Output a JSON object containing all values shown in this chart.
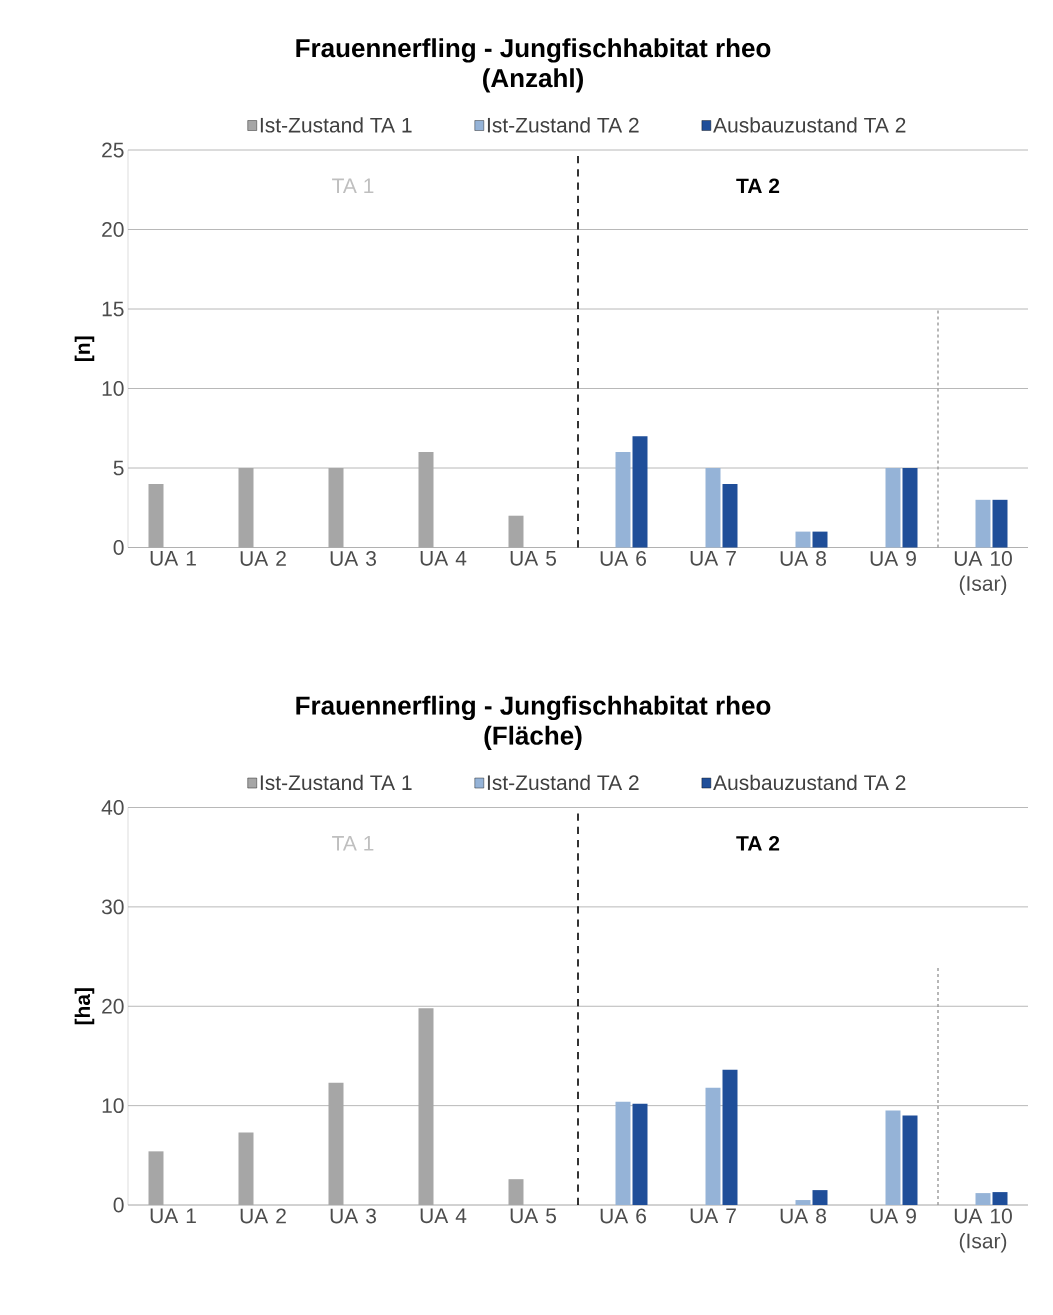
{
  "chart_data": [
    {
      "type": "bar",
      "title": "Frauennerfling - Jungfischhabitat rheo (Anzahl)",
      "ylabel": "[n]",
      "categories": [
        "UA 1",
        "UA 2",
        "UA 3",
        "UA 4",
        "UA 5",
        "UA 6",
        "UA 7",
        "UA 8",
        "UA 9",
        "UA 10 (Isar)"
      ],
      "series": [
        {
          "name": "Ist-Zustand TA 1",
          "color": "#a6a6a6",
          "values": [
            4,
            5,
            5,
            6,
            2,
            null,
            null,
            null,
            null,
            null
          ]
        },
        {
          "name": "Ist-Zustand TA 2",
          "color": "#95b3d7",
          "values": [
            null,
            null,
            null,
            null,
            null,
            6,
            5,
            1,
            5,
            3
          ]
        },
        {
          "name": "Ausbauzustand TA 2",
          "color": "#1f4e99",
          "values": [
            null,
            null,
            null,
            null,
            null,
            7,
            4,
            1,
            5,
            3
          ]
        }
      ],
      "ylim": [
        0,
        25
      ],
      "yticks": [
        0,
        5,
        10,
        15,
        20,
        25
      ],
      "grid": "y",
      "legend": "top",
      "annotations": [
        "TA 1",
        "**TA 2**"
      ]
    },
    {
      "type": "bar",
      "title": "Frauennerfling - Jungfischhabitat rheo (Fläche)",
      "ylabel": "[ha]",
      "categories": [
        "UA 1",
        "UA 2",
        "UA 3",
        "UA 4",
        "UA 5",
        "UA 6",
        "UA 7",
        "UA 8",
        "UA 9",
        "UA 10 (Isar)"
      ],
      "series": [
        {
          "name": "Ist-Zustand TA 1",
          "color": "#a6a6a6",
          "values": [
            5.4,
            7.3,
            12.3,
            19.8,
            2.6,
            null,
            null,
            null,
            null,
            null
          ]
        },
        {
          "name": "Ist-Zustand TA 2",
          "color": "#95b3d7",
          "values": [
            null,
            null,
            null,
            null,
            null,
            10.4,
            11.8,
            0.5,
            9.5,
            1.2
          ]
        },
        {
          "name": "Ausbauzustand TA 2",
          "color": "#1f4e99",
          "values": [
            null,
            null,
            null,
            null,
            null,
            10.2,
            13.6,
            1.5,
            9.0,
            1.3
          ]
        }
      ],
      "ylim": [
        0,
        40
      ],
      "yticks": [
        0,
        10,
        20,
        30,
        40
      ],
      "grid": "y",
      "legend": "top",
      "annotations": [
        "TA 1",
        "**TA 2**"
      ]
    }
  ]
}
